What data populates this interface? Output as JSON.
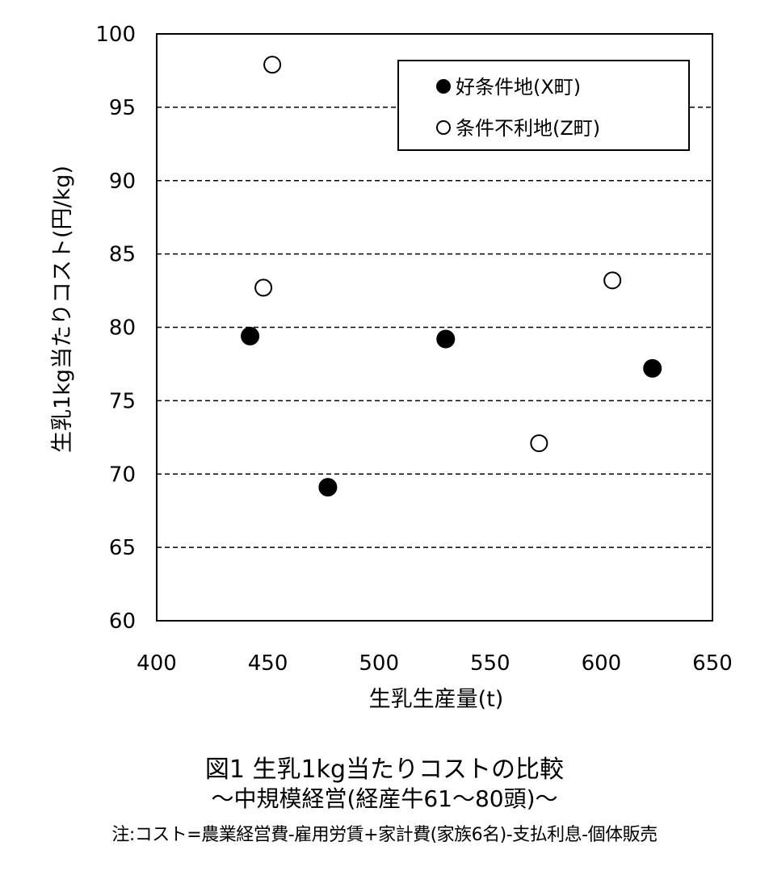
{
  "chart_data": {
    "type": "scatter",
    "xlabel": "生乳生産量(t)",
    "ylabel": "生乳1kg当たりコスト(円/kg)",
    "xlim": [
      400,
      650
    ],
    "ylim": [
      60,
      100
    ],
    "x_ticks": [
      "400",
      "450",
      "500",
      "550",
      "600",
      "650"
    ],
    "y_ticks": [
      "60",
      "65",
      "70",
      "75",
      "80",
      "85",
      "90",
      "95",
      "100"
    ],
    "grid": "horizontal dashed",
    "legend_position": "top-right",
    "series": [
      {
        "name": "好条件地(X町)",
        "marker": "filled-circle",
        "color": "#000000",
        "points": [
          {
            "x": 442,
            "y": 79.4
          },
          {
            "x": 477,
            "y": 69.1
          },
          {
            "x": 530,
            "y": 79.2
          },
          {
            "x": 623,
            "y": 77.2
          }
        ]
      },
      {
        "name": "条件不利地(Z町)",
        "marker": "open-circle",
        "color": "#000000",
        "points": [
          {
            "x": 452,
            "y": 97.9
          },
          {
            "x": 448,
            "y": 82.7
          },
          {
            "x": 572,
            "y": 72.1
          },
          {
            "x": 605,
            "y": 83.2
          }
        ]
      }
    ]
  },
  "caption": {
    "title": "図1 生乳1kg当たりコストの比較",
    "subtitle": "～中規模経営(経産牛61～80頭)～",
    "note": "注:コスト=農業経営費-雇用労賃+家計費(家族6名)-支払利息-個体販売"
  }
}
